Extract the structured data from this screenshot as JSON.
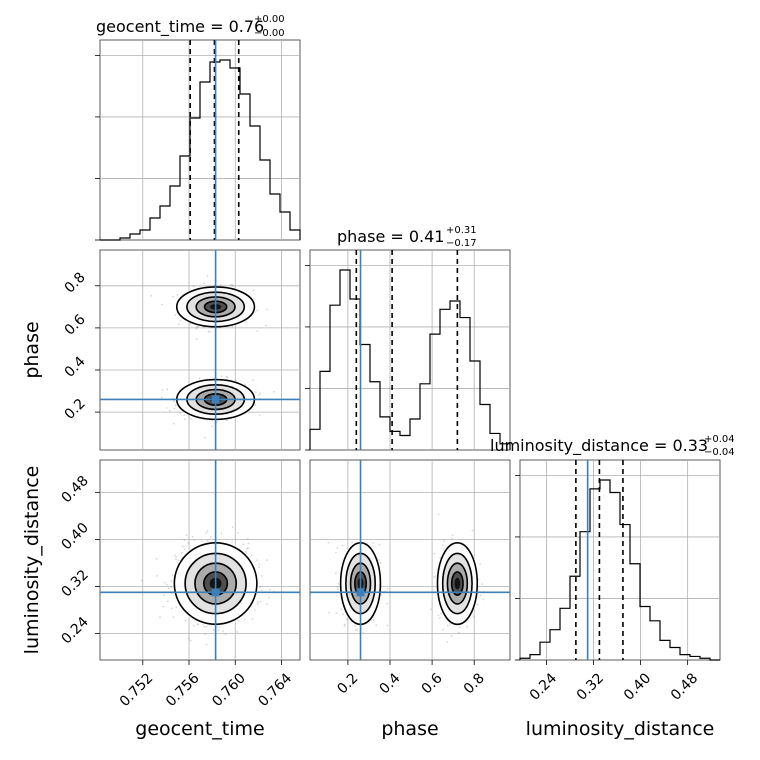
{
  "chart_data": {
    "type": "corner",
    "truths": {
      "geocent_time": 0.7583,
      "phase": 0.26,
      "luminosity_distance": 0.31
    },
    "titles": [
      {
        "param": "geocent_time",
        "text": "geocent_time = 0.76",
        "plus": "+0.00",
        "minus": "−0.00"
      },
      {
        "param": "phase",
        "text": "phase = 0.41",
        "plus": "+0.31",
        "minus": "−0.17"
      },
      {
        "param": "luminosity_distance",
        "text": "luminosity_distance = 0.33",
        "plus": "+0.04",
        "minus": "−0.04"
      }
    ],
    "axis_labels": {
      "x": [
        "geocent_time",
        "phase",
        "luminosity_distance"
      ],
      "y": [
        "phase",
        "luminosity_distance"
      ]
    },
    "ticks": {
      "geocent_time": [
        "0.752",
        "0.756",
        "0.760",
        "0.764"
      ],
      "phase": [
        "0.2",
        "0.4",
        "0.6",
        "0.8"
      ],
      "luminosity_distance": [
        "0.24",
        "0.32",
        "0.40",
        "0.48"
      ]
    },
    "tick_values": {
      "geocent_time": [
        0.752,
        0.756,
        0.76,
        0.764
      ],
      "phase": [
        0.2,
        0.4,
        0.6,
        0.8
      ],
      "luminosity_distance": [
        0.24,
        0.32,
        0.4,
        0.48
      ]
    },
    "ranges": {
      "geocent_time": [
        0.7483,
        0.7656
      ],
      "phase": [
        0.02,
        0.97
      ],
      "luminosity_distance": [
        0.195,
        0.535
      ]
    },
    "quantiles": {
      "geocent_time": [
        0.7561,
        0.7582,
        0.7603
      ],
      "phase": [
        0.24,
        0.41,
        0.72
      ],
      "luminosity_distance": [
        0.29,
        0.33,
        0.37
      ]
    },
    "hist_geocent_time": {
      "edges_start": 0.7483,
      "bin_width": 0.000865,
      "counts": [
        0,
        0,
        1,
        3,
        5,
        11,
        17,
        27,
        42,
        61,
        79,
        89,
        90,
        86,
        73,
        57,
        40,
        23,
        14,
        5
      ]
    },
    "hist_phase": {
      "edges_start": 0.02,
      "bin_width": 0.0475,
      "counts": [
        10,
        38,
        70,
        87,
        73,
        51,
        33,
        16,
        9,
        7,
        15,
        32,
        56,
        68,
        72,
        64,
        43,
        22,
        8,
        3
      ]
    },
    "hist_luminosity_distance": {
      "edges_start": 0.195,
      "bin_width": 0.017,
      "counts": [
        1,
        3,
        10,
        17,
        29,
        47,
        72,
        96,
        101,
        94,
        76,
        54,
        30,
        22,
        11,
        7,
        3,
        2,
        1,
        0
      ]
    }
  }
}
